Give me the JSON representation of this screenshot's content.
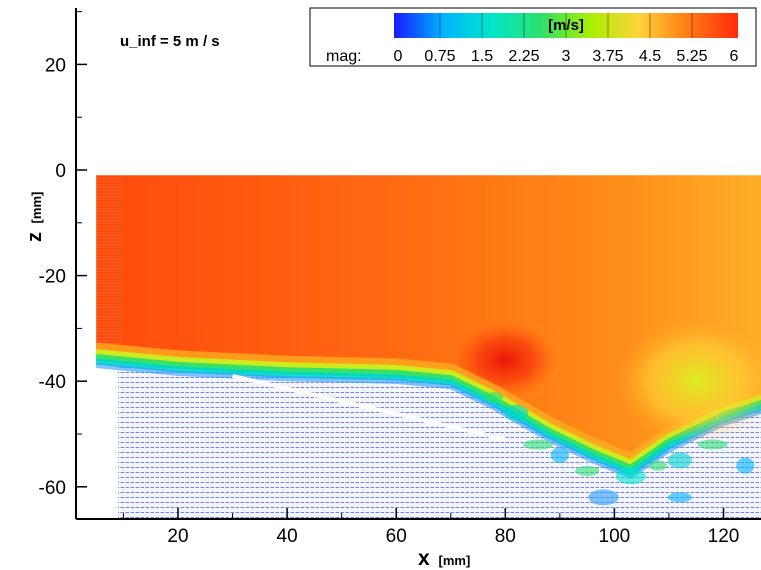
{
  "chart_data": {
    "type": "heatmap",
    "annotation": "u_inf = 5 m / s",
    "xlabel": "x",
    "xunit": "[mm]",
    "ylabel": "z",
    "yunit": "[mm]",
    "xlim": [
      -9,
      129
    ],
    "ylim": [
      -66,
      30
    ],
    "x_ticks": [
      20,
      40,
      60,
      80,
      100,
      120
    ],
    "y_ticks": [
      20,
      0,
      -20,
      -40,
      -60
    ],
    "colorbar": {
      "label": "mag:",
      "unit": "[m/s]",
      "range": [
        0,
        6
      ],
      "tick_labels": [
        "0",
        "0.75",
        "1.5",
        "2.25",
        "3",
        "3.75",
        "4.5",
        "5.25",
        "6"
      ],
      "colors": [
        "#1a1aff",
        "#00b4ff",
        "#00e6c8",
        "#2ee06a",
        "#a8f000",
        "#ffd23c",
        "#ff7a14",
        "#ff2a0a"
      ]
    },
    "field_top_z": -1,
    "interface_z_at_x": [
      [
        5,
        -34
      ],
      [
        20,
        -35.5
      ],
      [
        40,
        -36.5
      ],
      [
        60,
        -37
      ],
      [
        70,
        -38
      ],
      [
        78,
        -42
      ],
      [
        88,
        -48
      ],
      [
        96,
        -52
      ],
      [
        103,
        -55
      ],
      [
        110,
        -50
      ],
      [
        120,
        -45
      ],
      [
        129,
        -42
      ]
    ],
    "fast_spot": {
      "x": 80,
      "z": -36,
      "value": 6
    },
    "wake_low_region": {
      "x": [
        9,
        129
      ],
      "z": [
        -66,
        -38
      ]
    }
  }
}
